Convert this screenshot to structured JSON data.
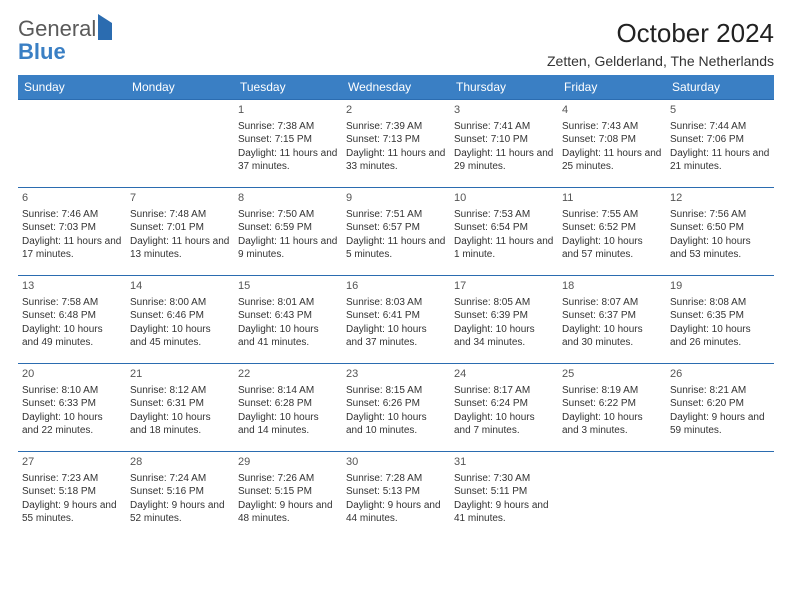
{
  "logo": {
    "text1": "General",
    "text2": "Blue"
  },
  "title": "October 2024",
  "location": "Zetten, Gelderland, The Netherlands",
  "colors": {
    "header_bg": "#3a7fc4",
    "header_text": "#ffffff",
    "border": "#2b6cb0",
    "body_text": "#333333",
    "logo_gray": "#5a5a5a",
    "logo_blue": "#3a7fc4"
  },
  "day_headers": [
    "Sunday",
    "Monday",
    "Tuesday",
    "Wednesday",
    "Thursday",
    "Friday",
    "Saturday"
  ],
  "weeks": [
    [
      null,
      null,
      {
        "n": "1",
        "sr": "7:38 AM",
        "ss": "7:15 PM",
        "dl": "11 hours and 37 minutes."
      },
      {
        "n": "2",
        "sr": "7:39 AM",
        "ss": "7:13 PM",
        "dl": "11 hours and 33 minutes."
      },
      {
        "n": "3",
        "sr": "7:41 AM",
        "ss": "7:10 PM",
        "dl": "11 hours and 29 minutes."
      },
      {
        "n": "4",
        "sr": "7:43 AM",
        "ss": "7:08 PM",
        "dl": "11 hours and 25 minutes."
      },
      {
        "n": "5",
        "sr": "7:44 AM",
        "ss": "7:06 PM",
        "dl": "11 hours and 21 minutes."
      }
    ],
    [
      {
        "n": "6",
        "sr": "7:46 AM",
        "ss": "7:03 PM",
        "dl": "11 hours and 17 minutes."
      },
      {
        "n": "7",
        "sr": "7:48 AM",
        "ss": "7:01 PM",
        "dl": "11 hours and 13 minutes."
      },
      {
        "n": "8",
        "sr": "7:50 AM",
        "ss": "6:59 PM",
        "dl": "11 hours and 9 minutes."
      },
      {
        "n": "9",
        "sr": "7:51 AM",
        "ss": "6:57 PM",
        "dl": "11 hours and 5 minutes."
      },
      {
        "n": "10",
        "sr": "7:53 AM",
        "ss": "6:54 PM",
        "dl": "11 hours and 1 minute."
      },
      {
        "n": "11",
        "sr": "7:55 AM",
        "ss": "6:52 PM",
        "dl": "10 hours and 57 minutes."
      },
      {
        "n": "12",
        "sr": "7:56 AM",
        "ss": "6:50 PM",
        "dl": "10 hours and 53 minutes."
      }
    ],
    [
      {
        "n": "13",
        "sr": "7:58 AM",
        "ss": "6:48 PM",
        "dl": "10 hours and 49 minutes."
      },
      {
        "n": "14",
        "sr": "8:00 AM",
        "ss": "6:46 PM",
        "dl": "10 hours and 45 minutes."
      },
      {
        "n": "15",
        "sr": "8:01 AM",
        "ss": "6:43 PM",
        "dl": "10 hours and 41 minutes."
      },
      {
        "n": "16",
        "sr": "8:03 AM",
        "ss": "6:41 PM",
        "dl": "10 hours and 37 minutes."
      },
      {
        "n": "17",
        "sr": "8:05 AM",
        "ss": "6:39 PM",
        "dl": "10 hours and 34 minutes."
      },
      {
        "n": "18",
        "sr": "8:07 AM",
        "ss": "6:37 PM",
        "dl": "10 hours and 30 minutes."
      },
      {
        "n": "19",
        "sr": "8:08 AM",
        "ss": "6:35 PM",
        "dl": "10 hours and 26 minutes."
      }
    ],
    [
      {
        "n": "20",
        "sr": "8:10 AM",
        "ss": "6:33 PM",
        "dl": "10 hours and 22 minutes."
      },
      {
        "n": "21",
        "sr": "8:12 AM",
        "ss": "6:31 PM",
        "dl": "10 hours and 18 minutes."
      },
      {
        "n": "22",
        "sr": "8:14 AM",
        "ss": "6:28 PM",
        "dl": "10 hours and 14 minutes."
      },
      {
        "n": "23",
        "sr": "8:15 AM",
        "ss": "6:26 PM",
        "dl": "10 hours and 10 minutes."
      },
      {
        "n": "24",
        "sr": "8:17 AM",
        "ss": "6:24 PM",
        "dl": "10 hours and 7 minutes."
      },
      {
        "n": "25",
        "sr": "8:19 AM",
        "ss": "6:22 PM",
        "dl": "10 hours and 3 minutes."
      },
      {
        "n": "26",
        "sr": "8:21 AM",
        "ss": "6:20 PM",
        "dl": "9 hours and 59 minutes."
      }
    ],
    [
      {
        "n": "27",
        "sr": "7:23 AM",
        "ss": "5:18 PM",
        "dl": "9 hours and 55 minutes."
      },
      {
        "n": "28",
        "sr": "7:24 AM",
        "ss": "5:16 PM",
        "dl": "9 hours and 52 minutes."
      },
      {
        "n": "29",
        "sr": "7:26 AM",
        "ss": "5:15 PM",
        "dl": "9 hours and 48 minutes."
      },
      {
        "n": "30",
        "sr": "7:28 AM",
        "ss": "5:13 PM",
        "dl": "9 hours and 44 minutes."
      },
      {
        "n": "31",
        "sr": "7:30 AM",
        "ss": "5:11 PM",
        "dl": "9 hours and 41 minutes."
      },
      null,
      null
    ]
  ]
}
